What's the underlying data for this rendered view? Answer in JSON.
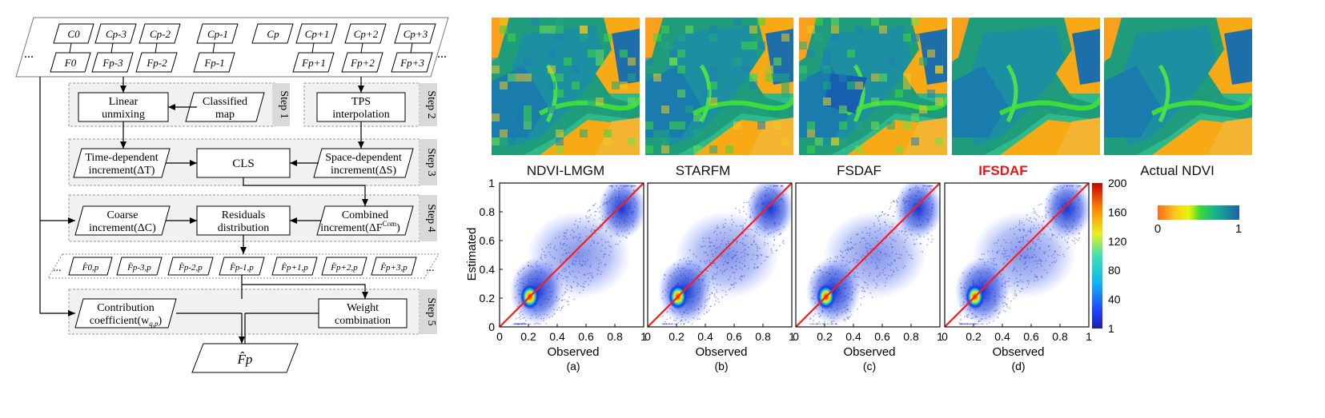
{
  "flowchart": {
    "top_row": {
      "coarse": [
        "C0",
        "Cp-3",
        "Cp-2",
        "Cp-1",
        "Cp",
        "Cp+1",
        "Cp+2",
        "Cp+3"
      ],
      "fine": [
        "F0",
        "Fp-3",
        "Fp-2",
        "Fp-1",
        "Fp+1",
        "Fp+2",
        "Fp+3"
      ],
      "ellipsis": "..."
    },
    "steps": [
      "Step 1",
      "Step 2",
      "Step 3",
      "Step 4",
      "Step 5"
    ],
    "boxes": {
      "linear_unmixing": [
        "Linear",
        "unmixing"
      ],
      "classified_map": [
        "Classified",
        "map"
      ],
      "tps_interp": [
        "TPS",
        "interpolation"
      ],
      "time_dependent": [
        "Time-dependent",
        "increment(ΔT)"
      ],
      "cls": "CLS",
      "space_dependent": [
        "Space-dependent",
        "increment(ΔS)"
      ],
      "coarse_increment": [
        "Coarse",
        "increment(ΔC)"
      ],
      "residuals": [
        "Residuals",
        "distribution"
      ],
      "combined": [
        "Combined",
        "increment(ΔF"
      ],
      "combined_sup": "Com",
      "contribution": [
        "Contribution",
        "coefficient(w"
      ],
      "weight": [
        "Weight",
        "combination"
      ],
      "predictions": [
        "F̂0,p",
        "F̂p-3,p",
        "F̂p-2,p",
        "F̂p-1,p",
        "F̂p+1,p",
        "F̂p+2,p",
        "F̂p+3,p"
      ],
      "output": "F̂p"
    }
  },
  "images": {
    "labels": [
      "NDVI-LMGM",
      "STARFM",
      "FSDAF",
      "IFSDAF",
      "Actual NDVI"
    ],
    "highlight_color": "#e8141c",
    "colorbar": {
      "min": "0",
      "max": "1"
    }
  },
  "scatter": {
    "ylabel": "Estimated",
    "xlabel": "Observed",
    "panels": [
      "(a)",
      "(b)",
      "(c)",
      "(d)"
    ],
    "ticks": [
      "0",
      "0.2",
      "0.4",
      "0.6",
      "0.8",
      "1"
    ],
    "density_colorbar": [
      "200",
      "160",
      "120",
      "80",
      "40",
      "1"
    ]
  },
  "chart_data": [
    {
      "type": "scatter",
      "title": "(a)",
      "xlabel": "Observed",
      "ylabel": "Estimated",
      "xlim": [
        0,
        1
      ],
      "ylim": [
        0,
        1
      ],
      "reference_line": "1:1",
      "density_range": [
        1,
        200
      ]
    },
    {
      "type": "scatter",
      "title": "(b)",
      "xlabel": "Observed",
      "ylabel": "",
      "xlim": [
        0,
        1
      ],
      "ylim": [
        0,
        1
      ],
      "reference_line": "1:1",
      "density_range": [
        1,
        200
      ]
    },
    {
      "type": "scatter",
      "title": "(c)",
      "xlabel": "Observed",
      "ylabel": "",
      "xlim": [
        0,
        1
      ],
      "ylim": [
        0,
        1
      ],
      "reference_line": "1:1",
      "density_range": [
        1,
        200
      ]
    },
    {
      "type": "scatter",
      "title": "(d)",
      "xlabel": "Observed",
      "ylabel": "",
      "xlim": [
        0,
        1
      ],
      "ylim": [
        0,
        1
      ],
      "reference_line": "1:1",
      "density_range": [
        1,
        200
      ]
    }
  ]
}
